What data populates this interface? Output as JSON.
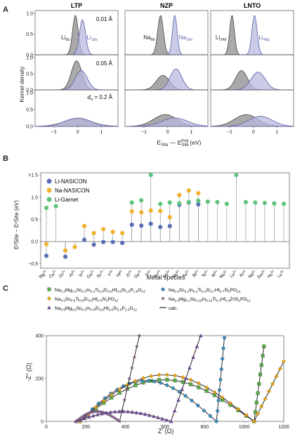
{
  "panels": {
    "a": {
      "letter": "A",
      "columns": [
        {
          "title": "LTP",
          "site1": "Li6b",
          "site1_sub": "6b",
          "site2": "Li18e",
          "site2_sub": "18e",
          "rows": [
            {
              "d": 0.01,
              "label": "0.01 Å",
              "centers": [
                -0.1,
                0.2
              ],
              "widths": [
                0.12,
                0.13
              ],
              "amps": [
                0.95,
                0.85
              ]
            },
            {
              "d": 0.05,
              "label": "0.05 Å",
              "centers": [
                -0.05,
                0.15
              ],
              "widths": [
                0.22,
                0.25
              ],
              "amps": [
                0.9,
                0.6
              ]
            },
            {
              "d": 0.2,
              "label": "d_σ = 0.2 Å",
              "centers": [
                0.0,
                0.0
              ],
              "widths": [
                0.6,
                0.55
              ],
              "amps": [
                0.22,
                0.25
              ]
            }
          ]
        },
        {
          "title": "NZP",
          "site1": "Na6b",
          "site1_sub": "6b",
          "site2": "Na18e",
          "site2_sub": "18e",
          "rows": [
            {
              "d": 0.01,
              "centers": [
                -0.3,
                0.3
              ],
              "widths": [
                0.12,
                0.1
              ],
              "amps": [
                0.95,
                0.95
              ]
            },
            {
              "d": 0.05,
              "centers": [
                -0.2,
                0.35
              ],
              "widths": [
                0.28,
                0.25
              ],
              "amps": [
                0.45,
                0.65
              ]
            },
            {
              "d": 0.2,
              "centers": [
                -0.1,
                0.3
              ],
              "widths": [
                0.5,
                0.55
              ],
              "amps": [
                0.35,
                0.25
              ]
            }
          ]
        },
        {
          "title": "LNTO",
          "site1": "Li24d",
          "site1_sub": "24d",
          "site2": "Li48g",
          "site2_sub": "48g",
          "rows": [
            {
              "d": 0.01,
              "centers": [
                -0.9,
                0.05
              ],
              "widths": [
                0.1,
                0.11
              ],
              "amps": [
                0.95,
                0.95
              ]
            },
            {
              "d": 0.05,
              "centers": [
                -0.5,
                0.2
              ],
              "widths": [
                0.25,
                0.3
              ],
              "amps": [
                0.6,
                0.55
              ]
            },
            {
              "d": 0.2,
              "centers": [
                -0.3,
                0.3
              ],
              "widths": [
                0.5,
                0.5
              ],
              "amps": [
                0.35,
                0.3
              ]
            }
          ]
        }
      ],
      "ylabel": "Kernel density",
      "xlabel_main": "E",
      "xlabel_sub1": "Site",
      "xlabel_mid": " — E",
      "xlabel_sub2": "Site",
      "xlabel_sup": "Avg",
      "xlabel_unit": " (eV)",
      "x_ticks": [
        "−1",
        "0",
        "1"
      ],
      "y_ticks": [
        "0.0",
        "0.5",
        "1.0"
      ],
      "xlim": [
        -1.8,
        1.7
      ],
      "colors": {
        "dark": "#444444",
        "dark_fill": "#9a9a9a",
        "blue": "#5e5fa8",
        "blue_fill": "#b8b9df"
      }
    },
    "b": {
      "letter": "B",
      "ylabel_text": "E²Site − E¹Site (eV)",
      "xlabel": "Metal species",
      "legend": [
        {
          "name": "Li-NASICON",
          "color": "#5a6fb6"
        },
        {
          "name": "Na-NASICON",
          "color": "#f2b22e"
        },
        {
          "name": "Li-Garnet",
          "color": "#5fc47d"
        }
      ],
      "y_ticks": [
        ">1.5",
        "1.0",
        "0.5",
        "0.0",
        "−0.5"
      ],
      "ylim": [
        -0.6,
        1.55
      ]
    },
    "c": {
      "letter": "C",
      "legend": [
        {
          "text": "Na3.3Mg0.2Sc0.2In0.2Ti0.2Zr0.6Hf0.6Si1.5P1.5O12",
          "marker": "square",
          "color": "#5aa64a"
        },
        {
          "text": "Na3.4Sc0.2In0.2Ti0.2Zr0.7Hf0.7Si2PO12",
          "marker": "circle",
          "color": "#3f89b5"
        },
        {
          "text": "Na3.5Sc0.5Ti0.5Zr0.5Hf0.5Si2PO12",
          "marker": "diamond",
          "color": "#e0a01a"
        },
        {
          "text": "Na3.4Mg0.1Sc0.15In0.15Ti0.3Hf0.3ZrSi2PO12",
          "marker": "star",
          "color": "#7c5a7e"
        },
        {
          "text": "Na3.5Mg0.5Sc0.3In0.3Zr0.6Hf0.6Si1.5P1.5O12",
          "marker": "triangle",
          "color": "#6e4a93"
        },
        {
          "text": "calc.",
          "marker": "line",
          "color": "#000000"
        }
      ],
      "x_ticks": [
        "0",
        "200",
        "400",
        "600",
        "800",
        "1000",
        "1200"
      ],
      "y_ticks": [
        "0",
        "200",
        "400"
      ],
      "xlabel": "Z′ (Ω)",
      "ylabel": "-Z″ (Ω)"
    }
  },
  "chart_data": [
    {
      "type": "area",
      "title": "",
      "xlabel": "E_Site — E_Site^Avg (eV)",
      "ylabel": "Kernel density",
      "columns": [
        "LTP",
        "NZP",
        "LNTO"
      ],
      "rows_d_sigma": [
        0.01,
        0.05,
        0.2
      ],
      "ylim": [
        0,
        1.0
      ]
    },
    {
      "type": "scatter",
      "title": "",
      "xlabel": "Metal species",
      "ylabel": "E²Site − E¹Site (eV)",
      "ylim": [
        -0.6,
        1.55
      ],
      "categories": [
        "Mg2+",
        "Ca2+",
        "Zn2+",
        "Al3+",
        "In3+",
        "Ga3+",
        "Sc3+",
        "Y3+",
        "Hf4+",
        "Zr4+",
        "Ge4+",
        "Ti4+",
        "Sn4+",
        "Nb5+",
        "Sb5+",
        "Ta5+",
        "Bi5+",
        "Te6+",
        "W6+",
        "Mo6+",
        "La3+",
        "Pr3+",
        "Nd3+",
        "Sm3+",
        "Ho3+",
        "Lu3+"
      ],
      "series": [
        {
          "name": "Li-NASICON",
          "color": "#5a6fb6",
          "values": [
            -0.32,
            null,
            -0.34,
            null,
            0.04,
            -0.07,
            -0.01,
            -0.01,
            -0.03,
            0.38,
            0.36,
            0.4,
            0.33,
            0.35,
            0.83,
            0.88,
            0.84,
            null,
            null,
            null,
            null,
            null,
            null,
            null,
            null,
            null
          ]
        },
        {
          "name": "Na-NASICON",
          "color": "#f2b22e",
          "values": [
            -0.06,
            null,
            -0.2,
            -0.12,
            0.35,
            0.19,
            0.28,
            0.22,
            0.19,
            0.68,
            0.66,
            0.7,
            0.69,
            0.55,
            1.05,
            1.15,
            1.09,
            null,
            null,
            null,
            null,
            null,
            null,
            null,
            null,
            null
          ]
        },
        {
          "name": "Li-Garnet",
          "color": "#5fc47d",
          "values": [
            0.76,
            0.8,
            null,
            null,
            null,
            null,
            null,
            null,
            null,
            0.88,
            0.93,
            1.5,
            0.85,
            0.88,
            0.86,
            0.89,
            0.92,
            0.9,
            0.89,
            0.85,
            1.5,
            0.89,
            0.88,
            0.87,
            0.86,
            0.85
          ]
        }
      ]
    },
    {
      "type": "scatter",
      "title": "",
      "xlabel": "Z′ (Ω)",
      "ylabel": "-Z″ (Ω)",
      "xlim": [
        0,
        1200
      ],
      "ylim": [
        0,
        400
      ],
      "series": [
        {
          "name": "Na3.3Mg0.2Sc0.2In0.2Ti0.2Zr0.6Hf0.6Si1.5P1.5O12",
          "marker": "square",
          "color": "#5aa64a",
          "arc": {
            "x0": 170,
            "x1": 1050,
            "peak": 210
          },
          "tail": {
            "x_end": 1100,
            "y_end": 350
          }
        },
        {
          "name": "Na3.4Sc0.2In0.2Ti0.2Zr0.7Hf0.7Si2PO12",
          "marker": "circle",
          "color": "#3f89b5",
          "arc": {
            "x0": 170,
            "x1": 860,
            "peak": 205
          },
          "tail": {
            "x_end": 900,
            "y_end": 390
          }
        },
        {
          "name": "Na3.5Sc0.5Ti0.5Zr0.5Hf0.5Si2PO12",
          "marker": "diamond",
          "color": "#e0a01a",
          "arc": {
            "x0": 170,
            "x1": 1050,
            "peak": 235
          },
          "tail": {
            "x_end": 1200,
            "y_end": 280
          }
        },
        {
          "name": "Na3.4Mg0.1Sc0.15In0.15Ti0.3Hf0.3ZrSi2PO12",
          "marker": "star",
          "color": "#7c5a7e",
          "arc": {
            "x0": 150,
            "x1": 370,
            "peak": 50
          },
          "tail": {
            "x_end": 470,
            "y_end": 400
          }
        },
        {
          "name": "Na3.5Mg0.5Sc0.3In0.3Zr0.6Hf0.6Si1.5P1.5O12",
          "marker": "triangle",
          "color": "#6e4a93",
          "arc": {
            "x0": 150,
            "x1": 630,
            "peak": 50
          },
          "tail": {
            "x_end": 780,
            "y_end": 400
          }
        }
      ]
    }
  ]
}
